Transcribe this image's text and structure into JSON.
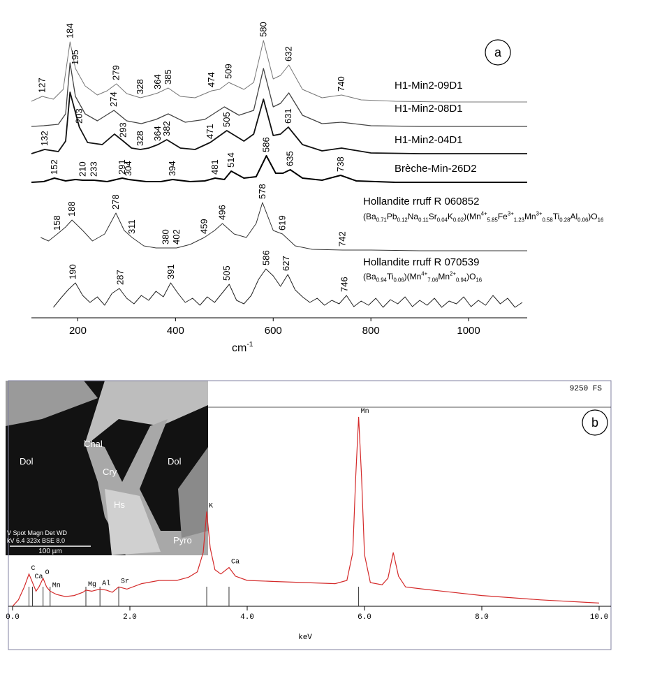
{
  "chart_data": [
    {
      "type": "line",
      "panel_label": "a",
      "xlabel": [
        {
          "text": "cm",
          "shift": "base"
        },
        {
          "text": "-1",
          "shift": "sup"
        }
      ],
      "xlim": [
        105,
        1120
      ],
      "xticks": [
        200,
        400,
        600,
        800,
        1000
      ],
      "series": [
        {
          "name": "H1-Min2-09D1",
          "color": "#777777",
          "x": [
            105,
            127,
            150,
            170,
            184,
            195,
            215,
            240,
            260,
            279,
            300,
            328,
            350,
            364,
            385,
            410,
            440,
            474,
            490,
            509,
            540,
            560,
            580,
            600,
            615,
            632,
            660,
            700,
            740,
            780,
            850,
            950,
            1050,
            1120
          ],
          "values": [
            3,
            10,
            6,
            20,
            88,
            50,
            25,
            12,
            18,
            28,
            14,
            8,
            12,
            15,
            22,
            10,
            8,
            18,
            20,
            30,
            20,
            30,
            90,
            35,
            40,
            55,
            20,
            8,
            12,
            5,
            3,
            2,
            2,
            2
          ],
          "peaks": [
            127,
            184,
            195,
            279,
            328,
            364,
            385,
            474,
            509,
            580,
            632,
            740
          ]
        },
        {
          "name": "H1-Min2-08D1",
          "color": "#444444",
          "x": [
            105,
            130,
            160,
            175,
            184,
            195,
            215,
            240,
            274,
            300,
            330,
            360,
            385,
            420,
            460,
            500,
            530,
            560,
            580,
            600,
            615,
            632,
            660,
            700,
            740,
            800,
            900,
            1000,
            1120
          ],
          "values": [
            2,
            3,
            5,
            20,
            93,
            45,
            20,
            10,
            25,
            10,
            6,
            12,
            20,
            8,
            12,
            30,
            18,
            25,
            85,
            30,
            35,
            50,
            18,
            6,
            8,
            3,
            2,
            2,
            2
          ],
          "peaks": [
            274
          ]
        },
        {
          "name": "H1-Min2-04D1",
          "color": "#111111",
          "x": [
            105,
            132,
            160,
            175,
            184,
            203,
            220,
            250,
            275,
            293,
            310,
            328,
            345,
            364,
            382,
            410,
            440,
            471,
            505,
            540,
            560,
            580,
            600,
            615,
            631,
            660,
            700,
            740,
            800,
            900,
            1000,
            1120
          ],
          "values": [
            2,
            8,
            5,
            20,
            90,
            40,
            18,
            15,
            30,
            20,
            10,
            8,
            10,
            15,
            22,
            10,
            8,
            18,
            35,
            20,
            30,
            80,
            28,
            30,
            40,
            15,
            6,
            10,
            3,
            2,
            2,
            2
          ],
          "peaks": [
            132,
            203,
            293,
            328,
            364,
            382,
            471,
            505,
            631
          ]
        },
        {
          "name": "Brèche-Min-26D2",
          "color": "#000000",
          "x": [
            105,
            130,
            152,
            175,
            195,
            210,
            233,
            260,
            291,
            304,
            340,
            370,
            394,
            430,
            460,
            481,
            500,
            514,
            540,
            565,
            586,
            605,
            620,
            635,
            660,
            700,
            738,
            770,
            850,
            950,
            1050,
            1120
          ],
          "values": [
            2,
            3,
            8,
            4,
            6,
            5,
            5,
            3,
            8,
            6,
            3,
            3,
            6,
            3,
            4,
            8,
            6,
            18,
            8,
            10,
            40,
            15,
            15,
            20,
            8,
            5,
            12,
            4,
            2,
            2,
            2,
            2
          ],
          "peaks": [
            152,
            210,
            233,
            291,
            304,
            394,
            481,
            514,
            586,
            635,
            738
          ]
        },
        {
          "name": "Hollandite rruff R 060852",
          "color": "#333333",
          "formula": [
            {
              "text": "(Ba",
              "shift": "base"
            },
            {
              "text": "0.71",
              "shift": "sub"
            },
            {
              "text": "Pb",
              "shift": "base"
            },
            {
              "text": "0.12",
              "shift": "sub"
            },
            {
              "text": "Na",
              "shift": "base"
            },
            {
              "text": "0.11",
              "shift": "sub"
            },
            {
              "text": "Sr",
              "shift": "base"
            },
            {
              "text": "0.04",
              "shift": "sub"
            },
            {
              "text": "K",
              "shift": "base"
            },
            {
              "text": "0.02",
              "shift": "sub"
            },
            {
              "text": ")(Mn",
              "shift": "base"
            },
            {
              "text": "4+",
              "shift": "sup"
            },
            {
              "text": "5.85",
              "shift": "sub"
            },
            {
              "text": "Fe",
              "shift": "base"
            },
            {
              "text": "3+",
              "shift": "sup"
            },
            {
              "text": "1.23",
              "shift": "sub"
            },
            {
              "text": "Mn",
              "shift": "base"
            },
            {
              "text": "3+",
              "shift": "sup"
            },
            {
              "text": "0.58",
              "shift": "sub"
            },
            {
              "text": "Ti",
              "shift": "base"
            },
            {
              "text": "0.28",
              "shift": "sub"
            },
            {
              "text": "Al",
              "shift": "base"
            },
            {
              "text": "0.06",
              "shift": "sub"
            },
            {
              "text": ")O",
              "shift": "base"
            },
            {
              "text": "16",
              "shift": "sub"
            }
          ],
          "x": [
            124,
            140,
            158,
            175,
            188,
            210,
            230,
            255,
            278,
            295,
            311,
            335,
            360,
            380,
            402,
            430,
            459,
            480,
            496,
            520,
            545,
            565,
            578,
            600,
            619,
            645,
            680,
            742,
            800,
            900,
            1000,
            1120
          ],
          "values": [
            20,
            15,
            25,
            35,
            45,
            30,
            15,
            25,
            55,
            30,
            20,
            8,
            5,
            5,
            5,
            10,
            20,
            30,
            40,
            25,
            20,
            40,
            70,
            30,
            25,
            8,
            3,
            2,
            2,
            1,
            1,
            1
          ],
          "peaks": [
            158,
            188,
            278,
            311,
            380,
            402,
            459,
            496,
            578,
            619,
            742
          ]
        },
        {
          "name": "Hollandite rruff R 070539",
          "color": "#222222",
          "formula": [
            {
              "text": "(Ba",
              "shift": "base"
            },
            {
              "text": "0.94",
              "shift": "sub"
            },
            {
              "text": "Ti",
              "shift": "base"
            },
            {
              "text": "0.06",
              "shift": "sub"
            },
            {
              "text": ")(Mn",
              "shift": "base"
            },
            {
              "text": "4+",
              "shift": "sup"
            },
            {
              "text": "7.06",
              "shift": "sub"
            },
            {
              "text": "Mn",
              "shift": "base"
            },
            {
              "text": "2+",
              "shift": "sup"
            },
            {
              "text": "0.94",
              "shift": "sub"
            },
            {
              "text": ")O",
              "shift": "base"
            },
            {
              "text": "16",
              "shift": "sub"
            }
          ],
          "x": [
            150,
            165,
            180,
            195,
            210,
            225,
            240,
            255,
            270,
            285,
            300,
            315,
            330,
            345,
            360,
            375,
            390,
            405,
            420,
            435,
            450,
            465,
            480,
            495,
            510,
            525,
            540,
            555,
            570,
            585,
            600,
            615,
            630,
            645,
            660,
            675,
            690,
            705,
            720,
            735,
            750,
            765,
            780,
            795,
            810,
            825,
            840,
            855,
            870,
            885,
            900,
            915,
            930,
            945,
            960,
            975,
            990,
            1005,
            1020,
            1035,
            1050,
            1065,
            1080,
            1095,
            1110
          ],
          "values": [
            5,
            18,
            30,
            40,
            22,
            12,
            20,
            8,
            25,
            32,
            18,
            10,
            22,
            15,
            28,
            20,
            40,
            25,
            12,
            18,
            8,
            20,
            12,
            25,
            38,
            15,
            10,
            22,
            45,
            60,
            50,
            35,
            52,
            30,
            20,
            12,
            18,
            8,
            15,
            10,
            22,
            6,
            14,
            8,
            18,
            5,
            16,
            10,
            20,
            6,
            15,
            8,
            18,
            5,
            14,
            10,
            20,
            6,
            15,
            8,
            22,
            10,
            18,
            5,
            12
          ],
          "peaks": [
            190,
            287,
            391,
            505,
            586,
            627,
            746
          ]
        }
      ]
    },
    {
      "type": "line",
      "panel_label": "b",
      "xlabel": "keV",
      "full_scale_label": "9250 FS",
      "xlim": [
        0,
        10
      ],
      "ylim": [
        0,
        9250
      ],
      "xticks": [
        {
          "value": 0,
          "label": "0.0"
        },
        {
          "value": 2,
          "label": "2.0"
        },
        {
          "value": 4,
          "label": "4.0"
        },
        {
          "value": 6,
          "label": "6.0"
        },
        {
          "value": 8,
          "label": "8.0"
        },
        {
          "value": 10,
          "label": "10.0"
        }
      ],
      "series": [
        {
          "color": "#d42a2a",
          "x": [
            0,
            0.1,
            0.2,
            0.28,
            0.34,
            0.4,
            0.45,
            0.52,
            0.58,
            0.64,
            0.75,
            0.9,
            1.05,
            1.2,
            1.25,
            1.35,
            1.49,
            1.6,
            1.7,
            1.81,
            1.95,
            2.2,
            2.5,
            2.8,
            3.0,
            3.15,
            3.25,
            3.31,
            3.37,
            3.45,
            3.55,
            3.69,
            3.8,
            4.0,
            4.5,
            5.0,
            5.5,
            5.7,
            5.8,
            5.85,
            5.9,
            5.95,
            6.0,
            6.1,
            6.3,
            6.4,
            6.49,
            6.58,
            6.7,
            7.0,
            8.0,
            9.0,
            10.0
          ],
          "values": [
            0,
            300,
            900,
            1500,
            1100,
            700,
            900,
            1300,
            900,
            700,
            550,
            450,
            500,
            650,
            750,
            700,
            800,
            750,
            650,
            900,
            800,
            1050,
            1200,
            1200,
            1350,
            1600,
            2500,
            4400,
            2700,
            1700,
            1500,
            1800,
            1400,
            1200,
            1150,
            1100,
            1050,
            1200,
            2500,
            6000,
            8800,
            6000,
            2400,
            1100,
            1000,
            1300,
            2500,
            1400,
            900,
            800,
            500,
            300,
            150
          ]
        }
      ],
      "element_lines": [
        {
          "label": "C",
          "value": 0.28
        },
        {
          "label": "Ca",
          "value": 0.34
        },
        {
          "label": "O",
          "value": 0.52
        },
        {
          "label": "Mn",
          "value": 0.64
        },
        {
          "label": "Mg",
          "value": 1.25
        },
        {
          "label": "Al",
          "value": 1.49
        },
        {
          "label": "Sr",
          "value": 1.81
        },
        {
          "label": "K",
          "value": 3.31
        },
        {
          "label": "Ca",
          "value": 3.69
        },
        {
          "label": "Mn",
          "value": 5.9
        }
      ],
      "inset": {
        "labels": [
          "Dol",
          "Chal",
          "Cry",
          "Hs",
          "Dol",
          "Pyro"
        ],
        "info": [
          "V  Spot Magn   Det  WD",
          "kV 6.4  323x   BSE  8.0"
        ],
        "scale_bar": "100 µm"
      }
    }
  ]
}
